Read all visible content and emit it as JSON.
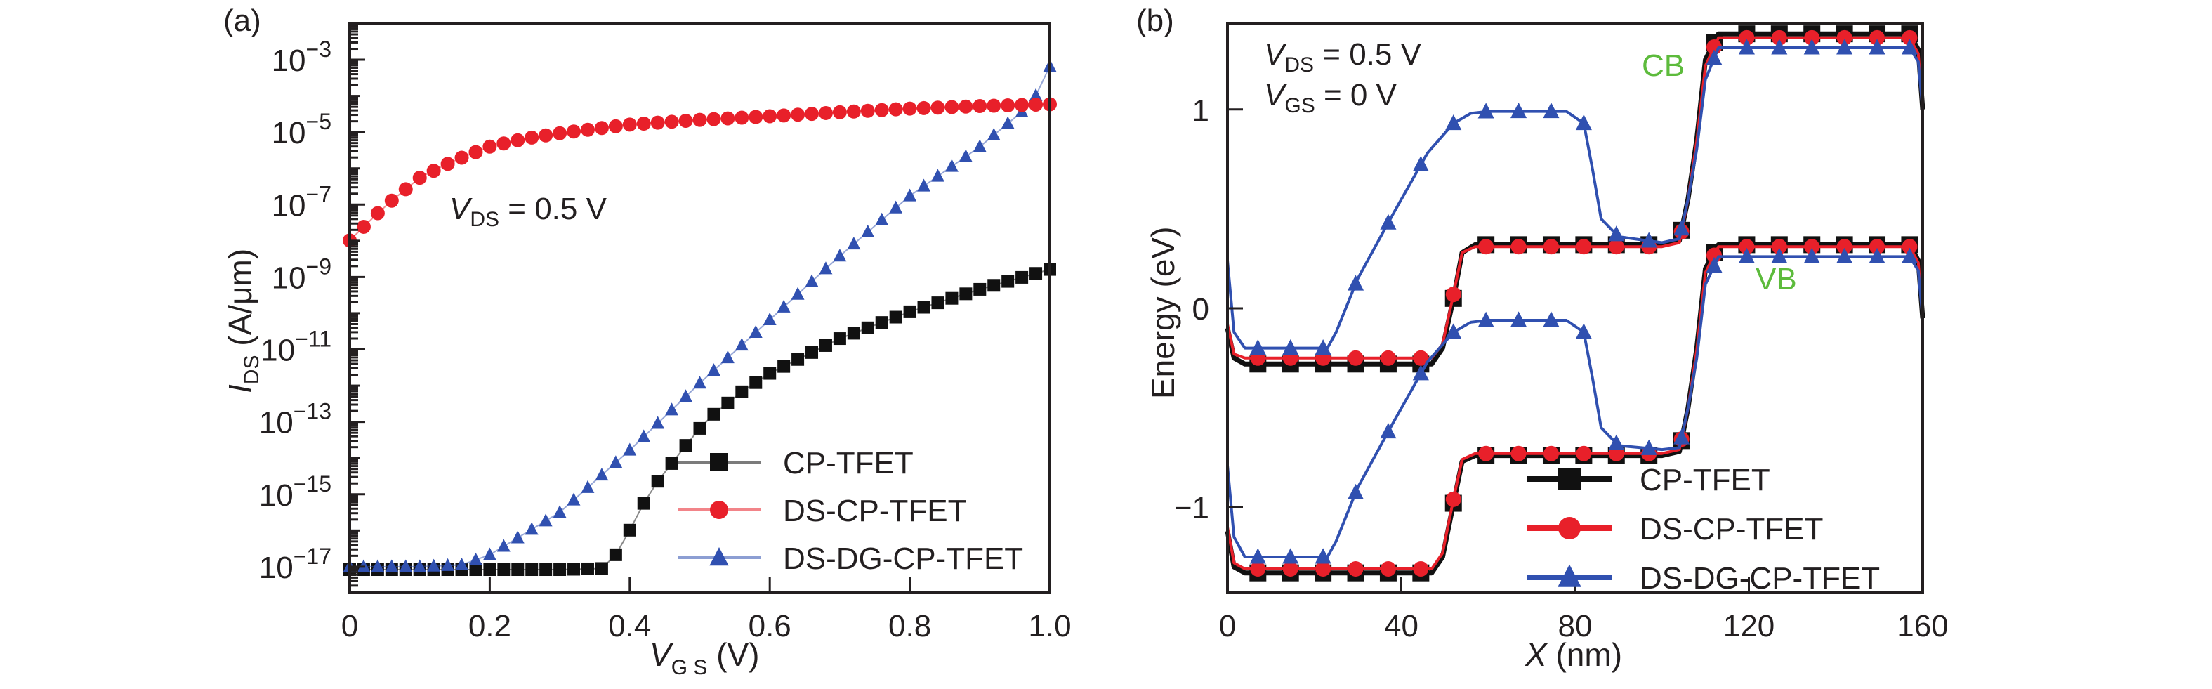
{
  "figure": {
    "colors": {
      "CP-TFET": "#111111",
      "DS-CP-TFET": "#e8202a",
      "DS-DG-CP-TFET": "#3050b0",
      "band_label": "#5dbb3c",
      "axis": "#231f20"
    }
  },
  "chart_data": [
    {
      "panel": "(a)",
      "type": "scatter",
      "yscale": "log",
      "title": "",
      "xlabel": "V_GS (V)",
      "xlabel_main": "V",
      "xlabel_sub": "G S",
      "xlabel_unit": " (V)",
      "ylabel": "I_DS (A/μm)",
      "ylabel_main": "I",
      "ylabel_sub": "DS",
      "ylabel_unit": " (A/μm)",
      "xlim": [
        0,
        1.0
      ],
      "ylim_log10": [
        -17.72,
        -2.01
      ],
      "xticks": [
        0,
        0.2,
        0.4,
        0.6,
        0.8,
        1.0
      ],
      "xtick_labels": [
        "0",
        "0.2",
        "0.4",
        "0.6",
        "0.8",
        "1.0"
      ],
      "yticks_log10": [
        -3,
        -5,
        -7,
        -9,
        -11,
        -13,
        -15,
        -17
      ],
      "ytick_labels": [
        "−3",
        "−5",
        "−7",
        "−9",
        "−11",
        "−13",
        "−15",
        "−17"
      ],
      "ytick_base": "10",
      "annotation": {
        "main": "V",
        "sub": "DS",
        "rest": " = 0.5 V"
      },
      "legend": {
        "placement": "bottom-right",
        "entries": [
          "CP-TFET",
          "DS-CP-TFET",
          "DS-DG-CP-TFET"
        ]
      },
      "grid": false,
      "series": [
        {
          "name": "CP-TFET",
          "marker": "square",
          "x": [
            0,
            0.1,
            0.2,
            0.3,
            0.36,
            0.38,
            0.4,
            0.42,
            0.44,
            0.46,
            0.48,
            0.5,
            0.52,
            0.54,
            0.56,
            0.6,
            0.7,
            0.8,
            0.9,
            1.0
          ],
          "log10_y": [
            -17.08,
            -17.08,
            -17.08,
            -17.08,
            -17.05,
            -16.67,
            -15.99,
            -15.25,
            -14.64,
            -14.15,
            -13.65,
            -13.18,
            -12.79,
            -12.48,
            -12.17,
            -11.66,
            -10.7,
            -9.96,
            -9.34,
            -8.79
          ]
        },
        {
          "name": "DS-CP-TFET",
          "marker": "circle",
          "x": [
            0,
            0.05,
            0.1,
            0.15,
            0.2,
            0.25,
            0.3,
            0.4,
            0.5,
            0.6,
            0.7,
            0.8,
            0.9,
            1.0
          ],
          "log10_y": [
            -7.99,
            -7.05,
            -6.26,
            -5.78,
            -5.4,
            -5.18,
            -5.03,
            -4.79,
            -4.66,
            -4.56,
            -4.45,
            -4.35,
            -4.28,
            -4.23
          ]
        },
        {
          "name": "DS-DG-CP-TFET",
          "marker": "triangle",
          "x": [
            0,
            0.1,
            0.16,
            0.2,
            0.3,
            0.4,
            0.5,
            0.6,
            0.7,
            0.8,
            0.9,
            0.96,
            0.98,
            1.0
          ],
          "log10_y": [
            -17.0,
            -17.0,
            -16.95,
            -16.67,
            -15.5,
            -13.78,
            -11.93,
            -10.18,
            -8.42,
            -6.76,
            -5.4,
            -4.44,
            -3.99,
            -3.18
          ]
        }
      ]
    },
    {
      "panel": "(b)",
      "type": "line",
      "title": "",
      "xlabel": "X (nm)",
      "xlabel_main": "X",
      "xlabel_unit": " (nm)",
      "ylabel": "Energy (eV)",
      "xlim": [
        0,
        160
      ],
      "ylim": [
        -1.43,
        1.43
      ],
      "xticks": [
        0,
        40,
        80,
        120,
        160
      ],
      "xtick_labels": [
        "0",
        "40",
        "80",
        "120",
        "160"
      ],
      "yticks": [
        1,
        0,
        -1
      ],
      "ytick_labels": [
        "1",
        "0",
        "−1"
      ],
      "annotations": [
        {
          "main": "V",
          "sub": "DS",
          "rest": " = 0.5 V"
        },
        {
          "main": "V",
          "sub": "GS",
          "rest": " = 0 V"
        }
      ],
      "band_labels": {
        "cb": "CB",
        "vb": "VB"
      },
      "legend": {
        "placement": "bottom-right",
        "entries": [
          "CP-TFET",
          "DS-CP-TFET",
          "DS-DG-CP-TFET"
        ]
      },
      "grid": false,
      "series": [
        {
          "name": "CP-TFET",
          "band": "CB",
          "marker": "square",
          "x": [
            0,
            1.5,
            4,
            47,
            49.5,
            52,
            54,
            57,
            100,
            104,
            106,
            108,
            110,
            113,
            157,
            159,
            160
          ],
          "y": [
            -0.1,
            -0.25,
            -0.28,
            -0.28,
            -0.2,
            0.05,
            0.28,
            0.32,
            0.32,
            0.34,
            0.55,
            0.85,
            1.25,
            1.38,
            1.38,
            1.3,
            1.0
          ],
          "marker_x": [
            7,
            14.5,
            22,
            29.5,
            37,
            44.5,
            52,
            59.5,
            67,
            74.5,
            82,
            89.5,
            97,
            104.5,
            112,
            119.5,
            127,
            134.5,
            142,
            149.5,
            157
          ]
        },
        {
          "name": "DS-CP-TFET",
          "band": "CB",
          "marker": "circle",
          "x": [
            0,
            1.5,
            4,
            47,
            49.5,
            52,
            54,
            57,
            100,
            104,
            106,
            108,
            110,
            113,
            157,
            159,
            160
          ],
          "y": [
            -0.08,
            -0.23,
            -0.25,
            -0.25,
            -0.18,
            0.07,
            0.28,
            0.31,
            0.31,
            0.33,
            0.55,
            0.84,
            1.22,
            1.36,
            1.36,
            1.28,
            1.0
          ],
          "marker_x": [
            7,
            14.5,
            22,
            29.5,
            37,
            44.5,
            52,
            59.5,
            67,
            74.5,
            82,
            89.5,
            97,
            104.5,
            112,
            119.5,
            127,
            134.5,
            142,
            149.5,
            157
          ]
        },
        {
          "name": "DS-DG-CP-TFET",
          "band": "CB",
          "marker": "triangle",
          "x": [
            0,
            1.5,
            4,
            23,
            25,
            30,
            38,
            46,
            52,
            56,
            60,
            78,
            82,
            84,
            86,
            90,
            100,
            104,
            106,
            108,
            110,
            113,
            157,
            159,
            160
          ],
          "y": [
            0.24,
            -0.12,
            -0.2,
            -0.2,
            -0.12,
            0.15,
            0.47,
            0.78,
            0.93,
            0.98,
            0.99,
            0.99,
            0.93,
            0.7,
            0.45,
            0.36,
            0.33,
            0.35,
            0.55,
            0.8,
            1.15,
            1.31,
            1.31,
            1.24,
            1.0
          ],
          "marker_x": [
            7,
            14.5,
            22,
            29.5,
            37,
            44.5,
            52,
            59.5,
            67,
            74.5,
            82,
            89.5,
            97,
            104.5,
            112,
            119.5,
            127,
            134.5,
            142,
            149.5,
            157
          ]
        },
        {
          "name": "CP-TFET",
          "band": "VB",
          "marker": "square",
          "x": [
            0,
            1.5,
            4,
            47,
            49.5,
            52,
            54,
            57,
            100,
            104,
            106,
            108,
            110,
            113,
            157,
            159,
            160
          ],
          "y": [
            -1.12,
            -1.3,
            -1.33,
            -1.33,
            -1.25,
            -0.98,
            -0.77,
            -0.74,
            -0.74,
            -0.72,
            -0.5,
            -0.2,
            0.2,
            0.32,
            0.32,
            0.24,
            -0.05
          ],
          "marker_x": [
            7,
            14.5,
            22,
            29.5,
            37,
            44.5,
            52,
            59.5,
            67,
            74.5,
            82,
            89.5,
            97,
            104.5,
            112,
            119.5,
            127,
            134.5,
            142,
            149.5,
            157
          ]
        },
        {
          "name": "DS-CP-TFET",
          "band": "VB",
          "marker": "circle",
          "x": [
            0,
            1.5,
            4,
            47,
            49.5,
            52,
            54,
            57,
            100,
            104,
            106,
            108,
            110,
            113,
            157,
            159,
            160
          ],
          "y": [
            -1.1,
            -1.28,
            -1.31,
            -1.31,
            -1.23,
            -0.96,
            -0.76,
            -0.73,
            -0.73,
            -0.71,
            -0.5,
            -0.21,
            0.18,
            0.31,
            0.31,
            0.23,
            -0.05
          ],
          "marker_x": [
            7,
            14.5,
            22,
            29.5,
            37,
            44.5,
            52,
            59.5,
            67,
            74.5,
            82,
            89.5,
            97,
            104.5,
            112,
            119.5,
            127,
            134.5,
            142,
            149.5,
            157
          ]
        },
        {
          "name": "DS-DG-CP-TFET",
          "band": "VB",
          "marker": "triangle",
          "x": [
            0,
            1.5,
            4,
            23,
            25,
            30,
            38,
            46,
            52,
            56,
            60,
            78,
            82,
            84,
            86,
            90,
            100,
            104,
            106,
            108,
            110,
            113,
            157,
            159,
            160
          ],
          "y": [
            -0.79,
            -1.15,
            -1.25,
            -1.25,
            -1.17,
            -0.9,
            -0.58,
            -0.27,
            -0.12,
            -0.07,
            -0.06,
            -0.06,
            -0.12,
            -0.35,
            -0.6,
            -0.69,
            -0.71,
            -0.7,
            -0.5,
            -0.25,
            0.12,
            0.26,
            0.26,
            0.19,
            -0.05
          ],
          "marker_x": [
            7,
            14.5,
            22,
            29.5,
            37,
            44.5,
            52,
            59.5,
            67,
            74.5,
            82,
            89.5,
            97,
            104.5,
            112,
            119.5,
            127,
            134.5,
            142,
            149.5,
            157
          ]
        }
      ]
    }
  ]
}
